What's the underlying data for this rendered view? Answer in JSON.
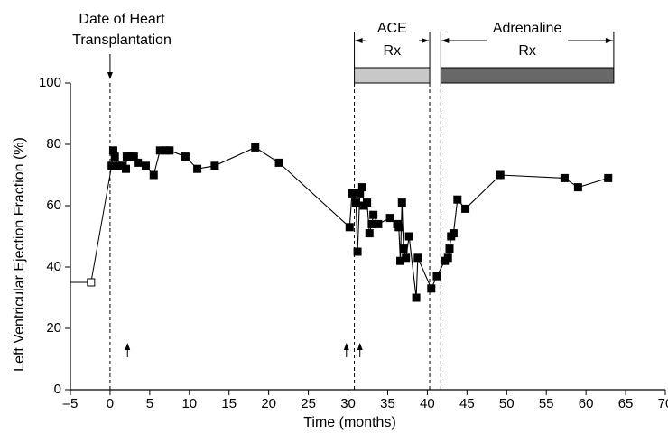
{
  "chart_data": {
    "type": "line",
    "title_lines": [
      "Date of Heart",
      "Transplantation"
    ],
    "xlabel": "Time (months)",
    "ylabel": "Left Ventricular Ejection Fraction (%)",
    "xlim": [
      -5,
      70
    ],
    "ylim": [
      0,
      100
    ],
    "xticks": [
      {
        "value": -5,
        "label": "–5"
      },
      0,
      5,
      10,
      15,
      20,
      25,
      30,
      35,
      40,
      45,
      50,
      55,
      60,
      65,
      70
    ],
    "yticks": [
      0,
      20,
      40,
      60,
      80,
      100
    ],
    "transplant_x": 0,
    "dashed_lines_x": [
      0,
      30.8,
      40.3,
      41.7
    ],
    "event_arrows_x": [
      2.2,
      29.8,
      31.5
    ],
    "periods": [
      {
        "lines": [
          "ACE",
          "Rx"
        ],
        "start": 30.8,
        "end": 40.3,
        "color": "#c8c8c8"
      },
      {
        "lines": [
          "Adrenaline",
          "Rx"
        ],
        "start": 41.7,
        "end": 63.5,
        "color": "#686868"
      }
    ],
    "series": [
      {
        "marker_fill": "#ffffff",
        "color": "#000000",
        "x": [
          -2.4
        ],
        "values": [
          35
        ]
      },
      {
        "marker_fill": "#000000",
        "color": "#000000",
        "x": [
          0.2,
          0.4,
          0.6,
          1,
          1.5,
          2,
          2.1,
          2.5,
          3,
          3.5,
          4.5,
          5.5,
          6.3,
          7,
          7.5,
          9.5,
          11,
          13.2,
          18.3,
          21.3,
          30.2,
          30.5,
          31,
          31.2,
          31.5,
          31.8,
          32,
          32.4,
          32.7,
          33,
          33.2,
          33.8,
          35.3,
          36.2,
          36.4,
          36.6,
          36.8,
          37,
          37.3,
          37.7,
          38.6,
          38.8,
          40.5,
          41.2,
          42.2,
          42.6,
          42.8,
          43,
          43.3,
          43.8,
          44.8,
          49.2,
          57.3,
          59,
          62.8
        ],
        "values": [
          73,
          78,
          76,
          73,
          73,
          72,
          76,
          76,
          76,
          74,
          73,
          70,
          78,
          78,
          78,
          76,
          72,
          73,
          79,
          74,
          53,
          64,
          61,
          45,
          64,
          66,
          60,
          61,
          51,
          54,
          57,
          54,
          56,
          54,
          53,
          42,
          61,
          46,
          43,
          50,
          30,
          43,
          33,
          37,
          42,
          43,
          46,
          50,
          51,
          62,
          59,
          70,
          69,
          66,
          69
        ]
      }
    ]
  }
}
